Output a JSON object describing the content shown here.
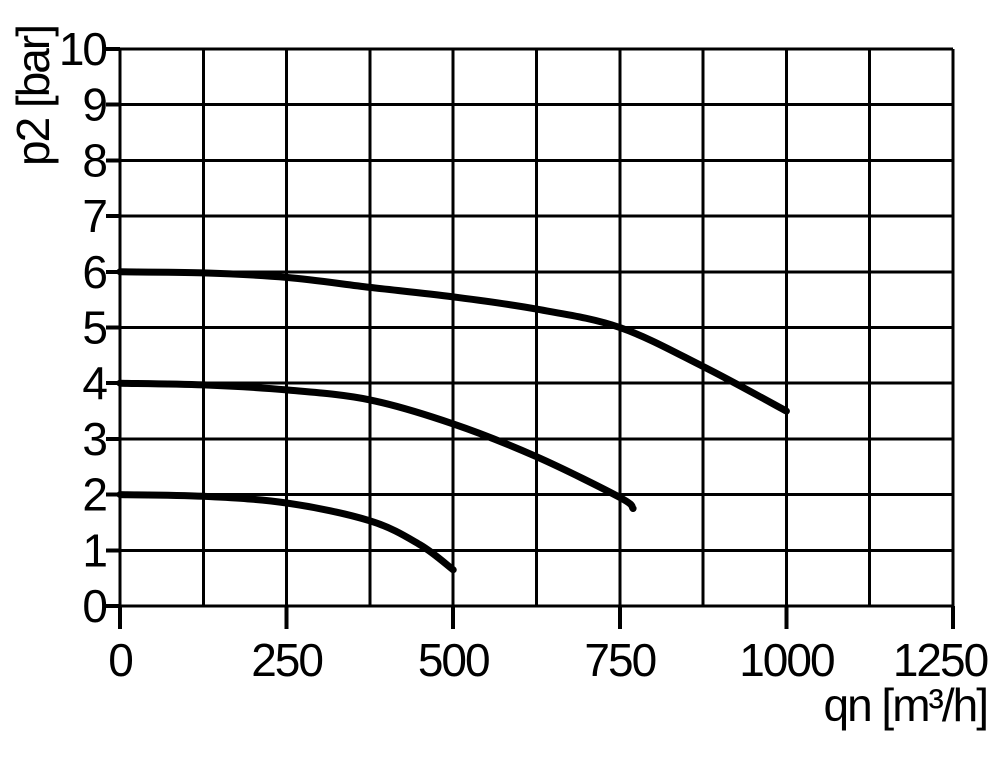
{
  "chart_data": {
    "type": "line",
    "title": "",
    "xlabel": "qn [m³/h]",
    "ylabel": "p2 [bar]",
    "xlim": [
      0,
      1250
    ],
    "ylim": [
      0,
      10
    ],
    "x_ticks": [
      0,
      250,
      500,
      750,
      1000,
      1250
    ],
    "y_ticks": [
      0,
      1,
      2,
      3,
      4,
      5,
      6,
      7,
      8,
      9,
      10
    ],
    "x_grid_step": 125,
    "y_grid_step": 1,
    "grid": true,
    "legend": "none",
    "stroke_color": "#000000",
    "background_color": "#ffffff",
    "series": [
      {
        "id": "series-1",
        "points": [
          [
            0,
            6.0
          ],
          [
            125,
            5.98
          ],
          [
            250,
            5.9
          ],
          [
            375,
            5.72
          ],
          [
            500,
            5.55
          ],
          [
            625,
            5.33
          ],
          [
            750,
            5.0
          ],
          [
            875,
            4.3
          ],
          [
            1000,
            3.5
          ]
        ]
      },
      {
        "id": "series-2",
        "points": [
          [
            0,
            4.0
          ],
          [
            125,
            3.97
          ],
          [
            250,
            3.88
          ],
          [
            375,
            3.7
          ],
          [
            500,
            3.27
          ],
          [
            625,
            2.68
          ],
          [
            750,
            1.95
          ],
          [
            770,
            1.75
          ]
        ]
      },
      {
        "id": "series-3",
        "points": [
          [
            0,
            2.0
          ],
          [
            125,
            1.97
          ],
          [
            250,
            1.85
          ],
          [
            375,
            1.53
          ],
          [
            450,
            1.1
          ],
          [
            500,
            0.65
          ]
        ]
      }
    ]
  }
}
